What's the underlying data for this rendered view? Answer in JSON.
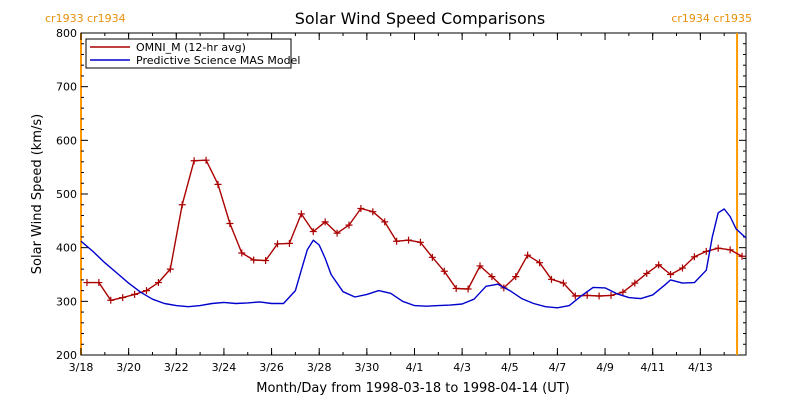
{
  "chart_data": {
    "type": "line",
    "title": "Solar Wind Speed Comparisons",
    "xlabel": "Month/Day from 1998-03-18 to 1998-04-14 (UT)",
    "ylabel": "Solar Wind Speed (km/s)",
    "ylim": [
      200,
      800
    ],
    "y_ticks": [
      "200",
      "300",
      "400",
      "500",
      "600",
      "700",
      "800"
    ],
    "xlim": [
      "1998-03-18",
      "1998-04-14 22:00"
    ],
    "x_ticks": [
      {
        "date": "1998-03-18",
        "label": "3/18"
      },
      {
        "date": "1998-03-20",
        "label": "3/20"
      },
      {
        "date": "1998-03-22",
        "label": "3/22"
      },
      {
        "date": "1998-03-24",
        "label": "3/24"
      },
      {
        "date": "1998-03-26",
        "label": "3/26"
      },
      {
        "date": "1998-03-28",
        "label": "3/28"
      },
      {
        "date": "1998-03-30",
        "label": "3/30"
      },
      {
        "date": "1998-04-01",
        "label": "4/1"
      },
      {
        "date": "1998-04-03",
        "label": "4/3"
      },
      {
        "date": "1998-04-05",
        "label": "4/5"
      },
      {
        "date": "1998-04-07",
        "label": "4/7"
      },
      {
        "date": "1998-04-09",
        "label": "4/9"
      },
      {
        "date": "1998-04-11",
        "label": "4/11"
      },
      {
        "date": "1998-04-13",
        "label": "4/13"
      }
    ],
    "carrington_markers": [
      {
        "date": "1998-03-18",
        "label": "cr1933 cr1934",
        "side": "left",
        "color": "#ff9900"
      },
      {
        "date": "1998-04-14 13:00",
        "label": "cr1934 cr1935",
        "side": "right",
        "color": "#ff9900"
      }
    ],
    "legend_position": "top-left",
    "series": [
      {
        "name": "OMNI_M (12-hr avg)",
        "color": "#aa0000",
        "markers": true,
        "points": [
          [
            "1998-03-18 06:00",
            335
          ],
          [
            "1998-03-18 18:00",
            335
          ],
          [
            "1998-03-19 06:00",
            302
          ],
          [
            "1998-03-19 18:00",
            307
          ],
          [
            "1998-03-20 06:00",
            313
          ],
          [
            "1998-03-20 18:00",
            320
          ],
          [
            "1998-03-21 06:00",
            335
          ],
          [
            "1998-03-21 18:00",
            360
          ],
          [
            "1998-03-22 06:00",
            480
          ],
          [
            "1998-03-22 18:00",
            562
          ],
          [
            "1998-03-23 06:00",
            563
          ],
          [
            "1998-03-23 18:00",
            518
          ],
          [
            "1998-03-24 06:00",
            445
          ],
          [
            "1998-03-24 18:00",
            390
          ],
          [
            "1998-03-25 06:00",
            377
          ],
          [
            "1998-03-25 18:00",
            376
          ],
          [
            "1998-03-26 06:00",
            407
          ],
          [
            "1998-03-26 18:00",
            408
          ],
          [
            "1998-03-27 06:00",
            463
          ],
          [
            "1998-03-27 18:00",
            430
          ],
          [
            "1998-03-28 06:00",
            448
          ],
          [
            "1998-03-28 18:00",
            427
          ],
          [
            "1998-03-29 06:00",
            442
          ],
          [
            "1998-03-29 18:00",
            473
          ],
          [
            "1998-03-30 06:00",
            467
          ],
          [
            "1998-03-30 18:00",
            448
          ],
          [
            "1998-03-31 06:00",
            412
          ],
          [
            "1998-03-31 18:00",
            414
          ],
          [
            "1998-04-01 06:00",
            410
          ],
          [
            "1998-04-01 18:00",
            382
          ],
          [
            "1998-04-02 06:00",
            356
          ],
          [
            "1998-04-02 18:00",
            324
          ],
          [
            "1998-04-03 06:00",
            323
          ],
          [
            "1998-04-03 18:00",
            366
          ],
          [
            "1998-04-04 06:00",
            346
          ],
          [
            "1998-04-04 18:00",
            325
          ],
          [
            "1998-04-05 06:00",
            346
          ],
          [
            "1998-04-05 18:00",
            386
          ],
          [
            "1998-04-06 06:00",
            372
          ],
          [
            "1998-04-06 18:00",
            341
          ],
          [
            "1998-04-07 06:00",
            334
          ],
          [
            "1998-04-07 18:00",
            310
          ],
          [
            "1998-04-08 06:00",
            311
          ],
          [
            "1998-04-08 18:00",
            310
          ],
          [
            "1998-04-09 06:00",
            311
          ],
          [
            "1998-04-09 18:00",
            317
          ],
          [
            "1998-04-10 06:00",
            334
          ],
          [
            "1998-04-10 18:00",
            352
          ],
          [
            "1998-04-11 06:00",
            368
          ],
          [
            "1998-04-11 18:00",
            350
          ],
          [
            "1998-04-12 06:00",
            362
          ],
          [
            "1998-04-12 18:00",
            383
          ],
          [
            "1998-04-13 06:00",
            393
          ],
          [
            "1998-04-13 18:00",
            399
          ],
          [
            "1998-04-14 06:00",
            396
          ],
          [
            "1998-04-14 18:00",
            384
          ]
        ]
      },
      {
        "name": "Predictive Science MAS Model",
        "color": "#0000cc",
        "markers": false,
        "points": [
          [
            "1998-03-18 00:00",
            412
          ],
          [
            "1998-03-18 12:00",
            393
          ],
          [
            "1998-03-19 00:00",
            372
          ],
          [
            "1998-03-19 12:00",
            353
          ],
          [
            "1998-03-20 00:00",
            334
          ],
          [
            "1998-03-20 12:00",
            317
          ],
          [
            "1998-03-21 00:00",
            304
          ],
          [
            "1998-03-21 12:00",
            296
          ],
          [
            "1998-03-22 00:00",
            292
          ],
          [
            "1998-03-22 12:00",
            290
          ],
          [
            "1998-03-23 00:00",
            292
          ],
          [
            "1998-03-23 12:00",
            296
          ],
          [
            "1998-03-24 00:00",
            298
          ],
          [
            "1998-03-24 12:00",
            296
          ],
          [
            "1998-03-25 00:00",
            297
          ],
          [
            "1998-03-25 12:00",
            299
          ],
          [
            "1998-03-26 00:00",
            296
          ],
          [
            "1998-03-26 12:00",
            296
          ],
          [
            "1998-03-27 00:00",
            320
          ],
          [
            "1998-03-27 06:00",
            358
          ],
          [
            "1998-03-27 12:00",
            396
          ],
          [
            "1998-03-27 18:00",
            414
          ],
          [
            "1998-03-28 00:00",
            405
          ],
          [
            "1998-03-28 06:00",
            380
          ],
          [
            "1998-03-28 12:00",
            350
          ],
          [
            "1998-03-29 00:00",
            318
          ],
          [
            "1998-03-29 12:00",
            308
          ],
          [
            "1998-03-30 00:00",
            313
          ],
          [
            "1998-03-30 12:00",
            320
          ],
          [
            "1998-03-31 00:00",
            315
          ],
          [
            "1998-03-31 12:00",
            300
          ],
          [
            "1998-04-01 00:00",
            292
          ],
          [
            "1998-04-01 12:00",
            291
          ],
          [
            "1998-04-02 00:00",
            292
          ],
          [
            "1998-04-02 12:00",
            293
          ],
          [
            "1998-04-03 00:00",
            295
          ],
          [
            "1998-04-03 12:00",
            304
          ],
          [
            "1998-04-04 00:00",
            328
          ],
          [
            "1998-04-04 12:00",
            332
          ],
          [
            "1998-04-05 00:00",
            320
          ],
          [
            "1998-04-05 12:00",
            305
          ],
          [
            "1998-04-06 00:00",
            296
          ],
          [
            "1998-04-06 12:00",
            290
          ],
          [
            "1998-04-07 00:00",
            288
          ],
          [
            "1998-04-07 12:00",
            292
          ],
          [
            "1998-04-08 00:00",
            310
          ],
          [
            "1998-04-08 12:00",
            326
          ],
          [
            "1998-04-09 00:00",
            325
          ],
          [
            "1998-04-09 12:00",
            314
          ],
          [
            "1998-04-10 00:00",
            307
          ],
          [
            "1998-04-10 12:00",
            305
          ],
          [
            "1998-04-11 00:00",
            312
          ],
          [
            "1998-04-11 12:00",
            330
          ],
          [
            "1998-04-11 18:00",
            340
          ],
          [
            "1998-04-12 06:00",
            334
          ],
          [
            "1998-04-12 18:00",
            335
          ],
          [
            "1998-04-13 06:00",
            358
          ],
          [
            "1998-04-13 12:00",
            420
          ],
          [
            "1998-04-13 18:00",
            465
          ],
          [
            "1998-04-14 00:00",
            472
          ],
          [
            "1998-04-14 06:00",
            458
          ],
          [
            "1998-04-14 12:00",
            435
          ],
          [
            "1998-04-14 22:00",
            418
          ]
        ]
      }
    ]
  }
}
